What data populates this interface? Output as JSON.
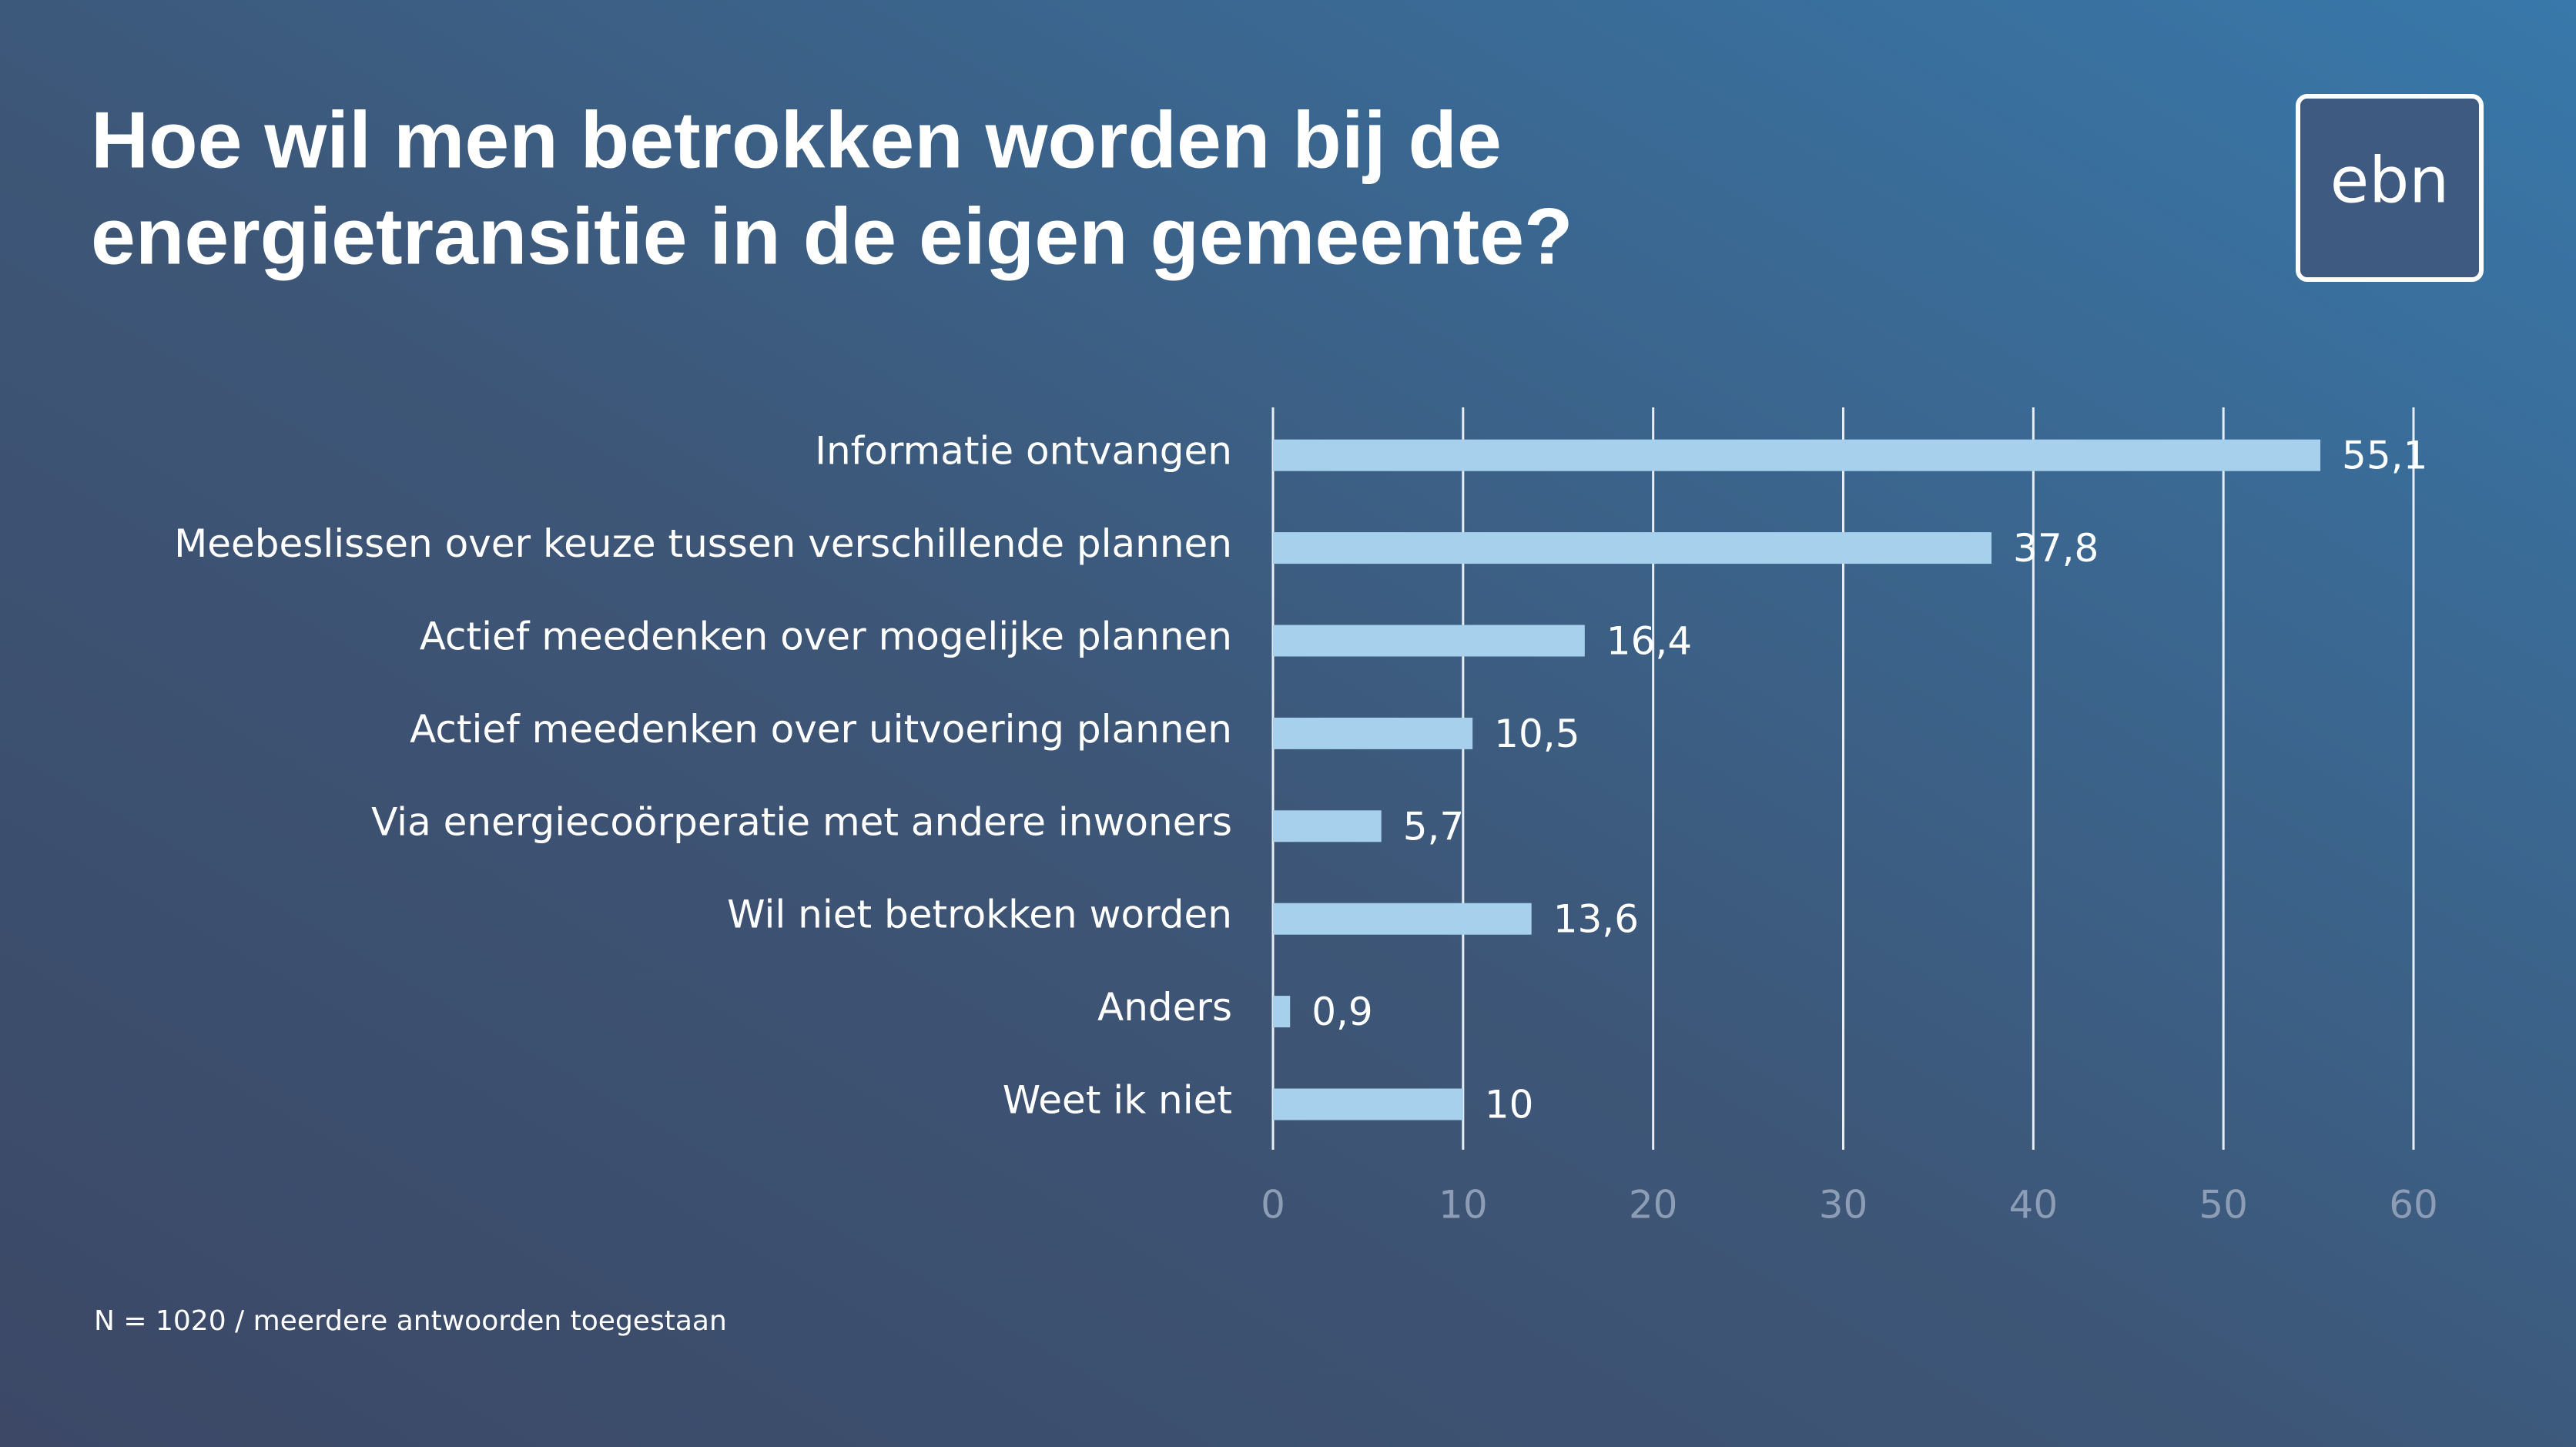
{
  "chart_data": {
    "type": "bar",
    "orientation": "horizontal",
    "title": [
      "Hoe wil men betrokken worden bij de",
      "energietransitie in de eigen gemeente?"
    ],
    "categories": [
      "Informatie ontvangen",
      "Meebeslissen over keuze tussen verschillende plannen",
      "Actief meedenken over mogelijke plannen",
      "Actief meedenken over uitvoering plannen",
      "Via energiecoörperatie met andere inwoners",
      "Wil niet betrokken worden",
      "Anders",
      "Weet ik niet"
    ],
    "values": [
      55.1,
      37.8,
      16.4,
      10.5,
      5.7,
      13.6,
      0.9,
      10
    ],
    "value_labels": [
      "55,1",
      "37,8",
      "16,4",
      "10,5",
      "5,7",
      "13,6",
      "0,9",
      "10"
    ],
    "color": "#a6d0ec",
    "xlim": [
      0,
      60
    ],
    "xticks": [
      0,
      10,
      20,
      30,
      40,
      50,
      60
    ],
    "grid": true,
    "note": "N = 1020 / meerdere antwoorden toegestaan"
  },
  "logo": "ebn"
}
